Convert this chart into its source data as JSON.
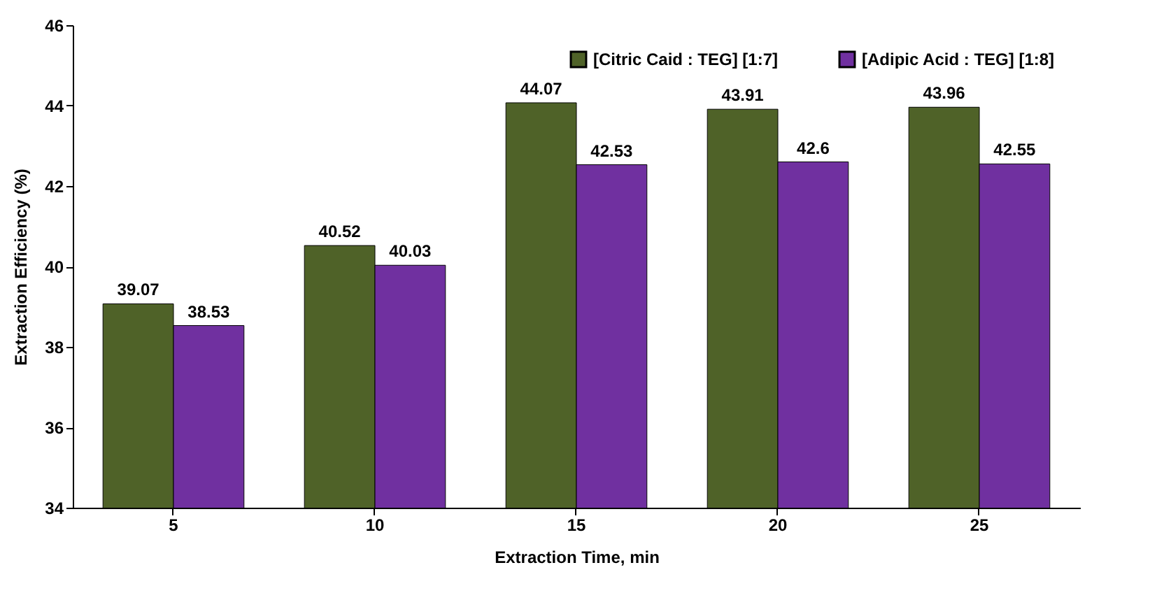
{
  "chart_data": {
    "type": "bar",
    "xlabel": "Extraction Time, min",
    "ylabel": "Extraction Efficiency (%)",
    "categories": [
      "5",
      "10",
      "15",
      "20",
      "25"
    ],
    "series": [
      {
        "name": "[Citric Caid : TEG] [1:7]",
        "color": "#4f6228",
        "values": [
          39.07,
          40.52,
          44.07,
          43.91,
          43.96
        ]
      },
      {
        "name": "[Adipic Acid : TEG] [1:8]",
        "color": "#7030a0",
        "values": [
          38.53,
          40.03,
          42.53,
          42.6,
          42.55
        ]
      }
    ],
    "ylim": [
      34,
      46
    ],
    "yticks": [
      34,
      36,
      38,
      40,
      42,
      44,
      46
    ],
    "grid": false,
    "legend": "top right",
    "data_labels": true
  }
}
